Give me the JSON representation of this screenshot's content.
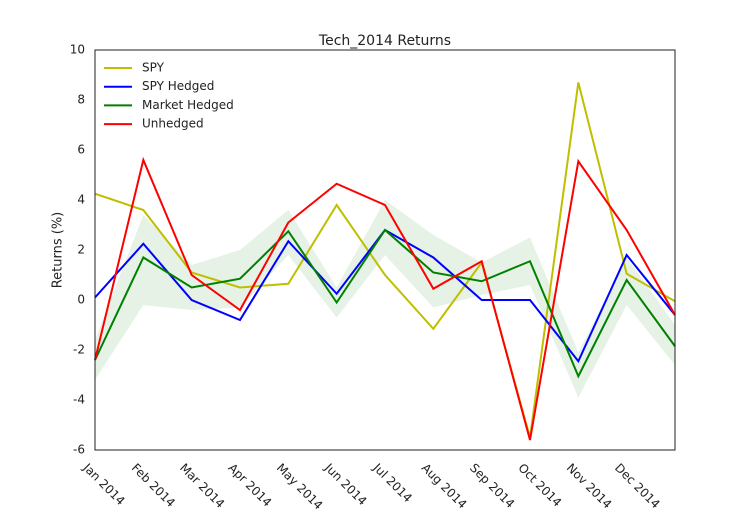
{
  "chart_data": {
    "type": "line",
    "title": "Tech_2014 Returns",
    "y_label": "Returns (%)",
    "categories": [
      "Jan 2014",
      "Feb 2014",
      "Mar 2014",
      "Apr 2014",
      "May 2014",
      "Jun 2014",
      "Jul 2014",
      "Aug 2014",
      "Sep 2014",
      "Oct 2014",
      "Nov 2014",
      "Dec 2014",
      null
    ],
    "series": [
      {
        "name": "SPY",
        "color": "#bfbf00",
        "values": [
          4.25,
          3.6,
          1.1,
          0.5,
          0.65,
          3.8,
          1.0,
          -1.15,
          1.5,
          -5.5,
          8.7,
          1.05,
          -0.05
        ]
      },
      {
        "name": "SPY Hedged",
        "color": "#0000ff",
        "values": [
          0.1,
          2.25,
          0.0,
          -0.8,
          2.35,
          0.25,
          2.8,
          1.7,
          0.0,
          0.0,
          -2.45,
          1.8,
          -0.6
        ]
      },
      {
        "name": "Market Hedged",
        "color": "#008000",
        "values": [
          -2.4,
          1.7,
          0.5,
          0.85,
          2.75,
          -0.1,
          2.8,
          1.1,
          0.75,
          1.55,
          -3.05,
          0.8,
          -1.85
        ]
      },
      {
        "name": "Unhedged",
        "color": "#ff0000",
        "values": [
          -2.4,
          5.6,
          1.0,
          -0.4,
          3.1,
          4.65,
          3.8,
          0.45,
          1.55,
          -5.6,
          5.55,
          2.8,
          -0.6
        ]
      }
    ],
    "band": {
      "color": "#008000",
      "upper": [
        -1.6,
        3.4,
        1.4,
        2.0,
        3.6,
        0.5,
        4.0,
        2.6,
        1.5,
        2.5,
        -2.1,
        1.7,
        -1.0
      ],
      "lower": [
        -3.2,
        -0.2,
        -0.4,
        -0.3,
        1.8,
        -0.7,
        1.8,
        -0.3,
        0.2,
        0.6,
        -3.9,
        -0.2,
        -2.6
      ]
    },
    "ylim": [
      -6,
      10
    ],
    "yticks": [
      -6,
      -4,
      -2,
      0,
      2,
      4,
      6,
      8,
      10
    ],
    "grid": false,
    "legend": "upper left"
  }
}
